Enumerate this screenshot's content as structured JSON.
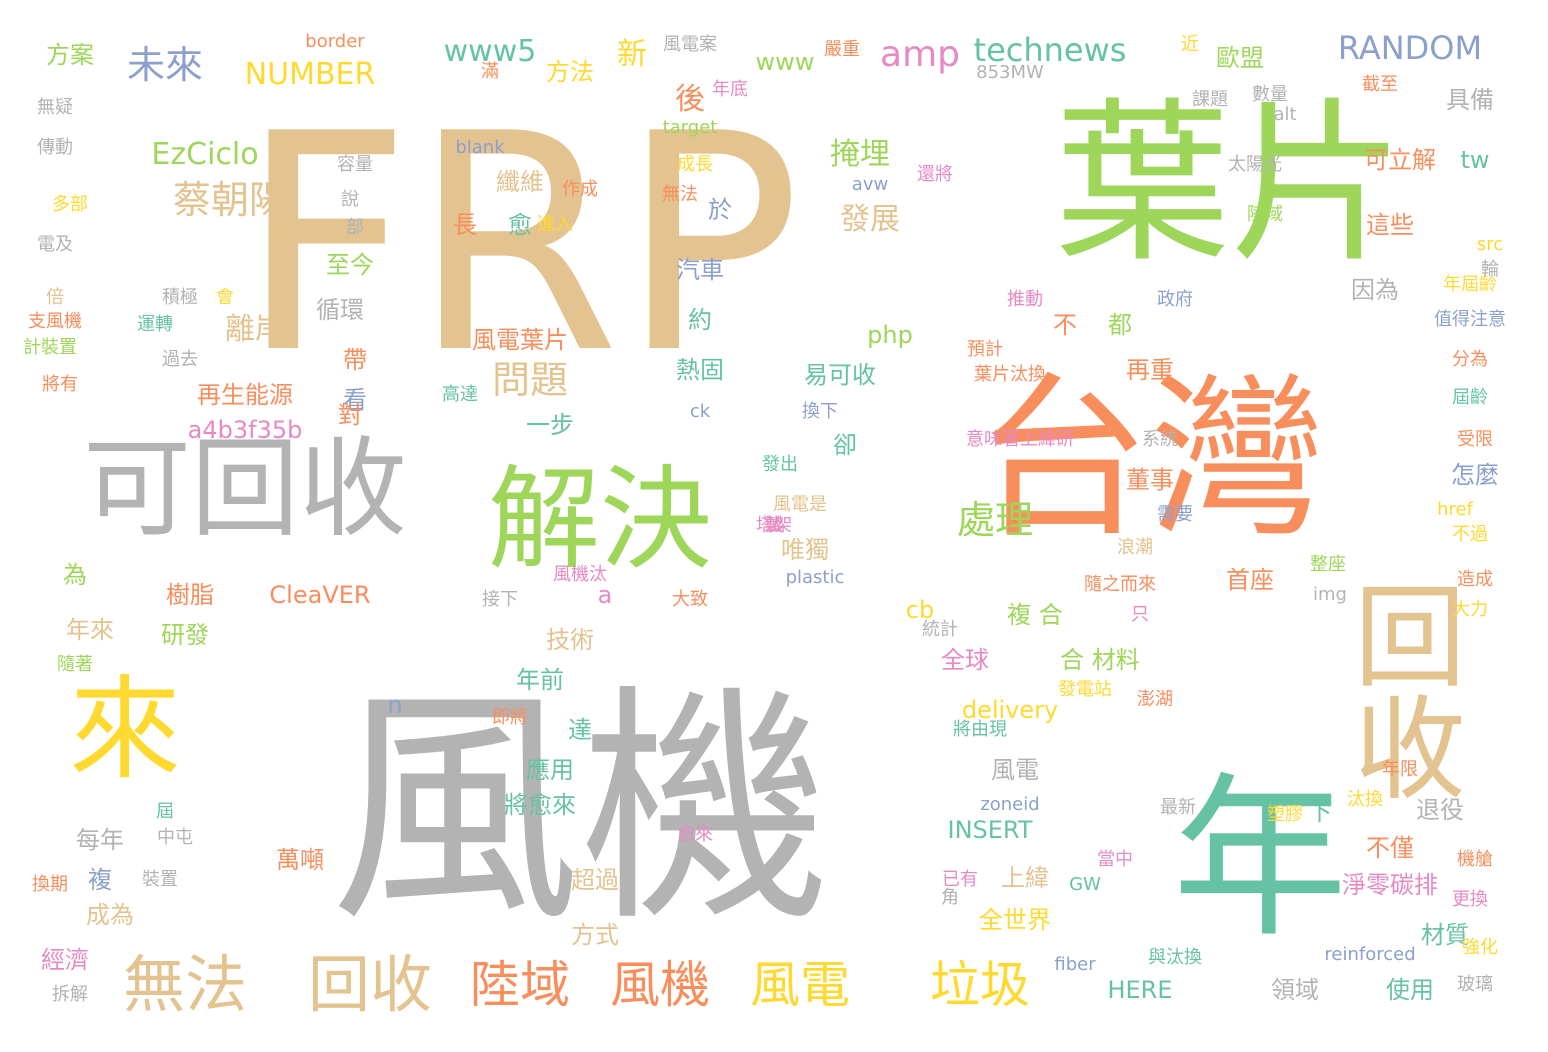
{
  "palette": {
    "tan": "#e3c38f",
    "green": "#9ed65a",
    "orange": "#f98e5d",
    "gray": "#b3b3b3",
    "teal": "#66c2a5",
    "yellow": "#ffd92f",
    "blue": "#8da0cb",
    "pink": "#e78ac3"
  },
  "words": [
    {
      "text": "FRP",
      "color": "tan",
      "rank": 1
    },
    {
      "text": "風機",
      "color": "gray",
      "rank": 1
    },
    {
      "text": "葉片",
      "color": "green",
      "rank": 2
    },
    {
      "text": "台灣",
      "color": "orange",
      "rank": 2
    },
    {
      "text": "年",
      "color": "teal",
      "rank": 2
    },
    {
      "text": "可回收",
      "color": "gray",
      "rank": 3
    },
    {
      "text": "解決",
      "color": "green",
      "rank": 3
    },
    {
      "text": "回收",
      "color": "tan",
      "rank": 3,
      "vertical": true
    },
    {
      "text": "來",
      "color": "yellow",
      "rank": 3
    },
    {
      "text": "無法",
      "color": "tan",
      "rank": 4
    },
    {
      "text": "回收",
      "color": "tan",
      "rank": 4
    },
    {
      "text": "陸域",
      "color": "orange",
      "rank": 4
    },
    {
      "text": "風機",
      "color": "orange",
      "rank": 4
    },
    {
      "text": "風電",
      "color": "yellow",
      "rank": 4
    },
    {
      "text": "垃圾",
      "color": "yellow",
      "rank": 4
    },
    {
      "text": "蔡朝陽",
      "color": "tan",
      "rank": 5
    },
    {
      "text": "處理",
      "color": "green",
      "rank": 5
    },
    {
      "text": "問題",
      "color": "tan",
      "rank": 5
    },
    {
      "text": "未來",
      "color": "blue",
      "rank": 5
    },
    {
      "text": "amp",
      "color": "pink",
      "rank": 5
    },
    {
      "text": "technews",
      "color": "teal",
      "rank": 5
    },
    {
      "text": "RANDOM",
      "color": "blue",
      "rank": 5
    },
    {
      "text": "NUMBER",
      "color": "yellow",
      "rank": 5
    },
    {
      "text": "www5",
      "color": "teal",
      "rank": 5
    },
    {
      "text": "EzCiclo",
      "color": "green",
      "rank": 5
    },
    {
      "text": "掩埋",
      "color": "green",
      "rank": 5
    },
    {
      "text": "發展",
      "color": "tan",
      "rank": 5
    },
    {
      "text": "離岸",
      "color": "tan",
      "rank": 5
    },
    {
      "text": "後",
      "color": "orange",
      "rank": 5
    },
    {
      "text": "新",
      "color": "yellow",
      "rank": 5
    },
    {
      "text": "方法",
      "color": "yellow",
      "rank": 6
    },
    {
      "text": "方案",
      "color": "green",
      "rank": 6
    },
    {
      "text": "www",
      "color": "green",
      "rank": 6
    },
    {
      "text": "歐盟",
      "color": "green",
      "rank": 6
    },
    {
      "text": "具備",
      "color": "gray",
      "rank": 6
    },
    {
      "text": "可立解",
      "color": "orange",
      "rank": 6
    },
    {
      "text": "這些",
      "color": "orange",
      "rank": 6
    },
    {
      "text": "tw",
      "color": "teal",
      "rank": 6
    },
    {
      "text": "纖維",
      "color": "tan",
      "rank": 6
    },
    {
      "text": "愈",
      "color": "teal",
      "rank": 6
    },
    {
      "text": "長",
      "color": "orange",
      "rank": 6
    },
    {
      "text": "於",
      "color": "blue",
      "rank": 6
    },
    {
      "text": "汽車",
      "color": "blue",
      "rank": 6
    },
    {
      "text": "至今",
      "color": "green",
      "rank": 6
    },
    {
      "text": "循環",
      "color": "gray",
      "rank": 6
    },
    {
      "text": "不",
      "color": "orange",
      "rank": 6
    },
    {
      "text": "都",
      "color": "green",
      "rank": 6
    },
    {
      "text": "因為",
      "color": "gray",
      "rank": 6
    },
    {
      "text": "php",
      "color": "green",
      "rank": 6
    },
    {
      "text": "約",
      "color": "teal",
      "rank": 6
    },
    {
      "text": "熱固",
      "color": "teal",
      "rank": 6
    },
    {
      "text": "易可收",
      "color": "teal",
      "rank": 6
    },
    {
      "text": "再重",
      "color": "orange",
      "rank": 6
    },
    {
      "text": "再生能源",
      "color": "orange",
      "rank": 6
    },
    {
      "text": "帶",
      "color": "orange",
      "rank": 6
    },
    {
      "text": "看",
      "color": "blue",
      "rank": 6
    },
    {
      "text": "a4b3f35b",
      "color": "pink",
      "rank": 6
    },
    {
      "text": "一步",
      "color": "teal",
      "rank": 6
    },
    {
      "text": "卻",
      "color": "teal",
      "rank": 6
    },
    {
      "text": "董事",
      "color": "orange",
      "rank": 6
    },
    {
      "text": "怎麼",
      "color": "blue",
      "rank": 6
    },
    {
      "text": "唯獨",
      "color": "tan",
      "rank": 6
    },
    {
      "text": "首座",
      "color": "orange",
      "rank": 6
    },
    {
      "text": "樹脂",
      "color": "orange",
      "rank": 6
    },
    {
      "text": "為",
      "color": "green",
      "rank": 6
    },
    {
      "text": "CleaVER",
      "color": "orange",
      "rank": 6
    },
    {
      "text": "a",
      "color": "pink",
      "rank": 6
    },
    {
      "text": "cb",
      "color": "yellow",
      "rank": 6
    },
    {
      "text": "複 合",
      "color": "green",
      "rank": 6
    },
    {
      "text": "技術",
      "color": "tan",
      "rank": 6
    },
    {
      "text": "研發",
      "color": "green",
      "rank": 6
    },
    {
      "text": "年來",
      "color": "tan",
      "rank": 6
    },
    {
      "text": "全球",
      "color": "pink",
      "rank": 6
    },
    {
      "text": "合 材料",
      "color": "green",
      "rank": 6
    },
    {
      "text": "年前",
      "color": "teal",
      "rank": 6
    },
    {
      "text": "delivery",
      "color": "yellow",
      "rank": 6
    },
    {
      "text": "達",
      "color": "teal",
      "rank": 6
    },
    {
      "text": "應用",
      "color": "teal",
      "rank": 6
    },
    {
      "text": "風電",
      "color": "gray",
      "rank": 6
    },
    {
      "text": "退役",
      "color": "gray",
      "rank": 6
    },
    {
      "text": "每年",
      "color": "gray",
      "rank": 6
    },
    {
      "text": "將愈來",
      "color": "teal",
      "rank": 6
    },
    {
      "text": "INSERT",
      "color": "teal",
      "rank": 6
    },
    {
      "text": "上緯",
      "color": "tan",
      "rank": 6
    },
    {
      "text": "下",
      "color": "teal",
      "rank": 6
    },
    {
      "text": "不僅",
      "color": "orange",
      "rank": 6
    },
    {
      "text": "複",
      "color": "blue",
      "rank": 6
    },
    {
      "text": "萬噸",
      "color": "orange",
      "rank": 6
    },
    {
      "text": "淨零碳排",
      "color": "pink",
      "rank": 6
    },
    {
      "text": "成為",
      "color": "tan",
      "rank": 6
    },
    {
      "text": "超過",
      "color": "tan",
      "rank": 6
    },
    {
      "text": "全世界",
      "color": "yellow",
      "rank": 6
    },
    {
      "text": "材質",
      "color": "teal",
      "rank": 6
    },
    {
      "text": "方式",
      "color": "tan",
      "rank": 6
    },
    {
      "text": "經濟",
      "color": "pink",
      "rank": 6
    },
    {
      "text": "HERE",
      "color": "teal",
      "rank": 6
    },
    {
      "text": "使用",
      "color": "teal",
      "rank": 6
    },
    {
      "text": "領域",
      "color": "gray",
      "rank": 6
    },
    {
      "text": "風電葉片",
      "color": "orange",
      "rank": 6
    },
    {
      "text": "對",
      "color": "orange",
      "rank": 6
    },
    {
      "text": "n",
      "color": "blue",
      "rank": 6
    },
    {
      "text": "border",
      "color": "orange",
      "rank": 7
    },
    {
      "text": "風電案",
      "color": "gray",
      "rank": 7
    },
    {
      "text": "853MW",
      "color": "gray",
      "rank": 7
    },
    {
      "text": "target",
      "color": "green",
      "rank": 7
    },
    {
      "text": "blank",
      "color": "blue",
      "rank": 7
    },
    {
      "text": "容量",
      "color": "gray",
      "rank": 7
    },
    {
      "text": "成長",
      "color": "yellow",
      "rank": 7
    },
    {
      "text": "avw",
      "color": "blue",
      "rank": 7
    },
    {
      "text": "alt",
      "color": "gray",
      "rank": 7
    },
    {
      "text": "太陽光",
      "color": "gray",
      "rank": 7
    },
    {
      "text": "ck",
      "color": "blue",
      "rank": 7
    },
    {
      "text": "發出",
      "color": "teal",
      "rank": 7
    },
    {
      "text": "風電是",
      "color": "tan",
      "rank": 7
    },
    {
      "text": "plastic",
      "color": "blue",
      "rank": 7
    },
    {
      "text": "img",
      "color": "gray",
      "rank": 7
    },
    {
      "text": "zoneid",
      "color": "blue",
      "rank": 7
    },
    {
      "text": "最新",
      "color": "gray",
      "rank": 7
    },
    {
      "text": "reinforced",
      "color": "blue",
      "rank": 7
    },
    {
      "text": "fiber",
      "color": "blue",
      "rank": 7
    },
    {
      "text": "與汰換",
      "color": "teal",
      "rank": 7
    },
    {
      "text": "GW",
      "color": "teal",
      "rank": 7
    },
    {
      "text": "href",
      "color": "yellow",
      "rank": 7
    },
    {
      "text": "src",
      "color": "yellow",
      "rank": 7
    },
    {
      "text": "將由現",
      "color": "teal",
      "rank": 7
    },
    {
      "text": "浪潮",
      "color": "tan",
      "rank": 7
    },
    {
      "text": "意味著上緯研",
      "color": "pink",
      "rank": 7
    },
    {
      "text": "系統",
      "color": "gray",
      "rank": 7
    },
    {
      "text": "無疑",
      "color": "gray",
      "rank": 7
    },
    {
      "text": "傳動",
      "color": "gray",
      "rank": 7
    },
    {
      "text": "電及",
      "color": "gray",
      "rank": 7
    },
    {
      "text": "積極",
      "color": "gray",
      "rank": 7
    },
    {
      "text": "過去",
      "color": "gray",
      "rank": 7
    },
    {
      "text": "年屆齡",
      "color": "yellow",
      "rank": 7
    },
    {
      "text": "數量",
      "color": "gray",
      "rank": 7
    },
    {
      "text": "課題",
      "color": "gray",
      "rank": 7
    },
    {
      "text": "截至",
      "color": "orange",
      "rank": 7
    },
    {
      "text": "推動",
      "color": "pink",
      "rank": 7
    },
    {
      "text": "政府",
      "color": "blue",
      "rank": 7
    },
    {
      "text": "換下",
      "color": "blue",
      "rank": 7
    },
    {
      "text": "值得注意",
      "color": "blue",
      "rank": 7
    },
    {
      "text": "屆齡",
      "color": "teal",
      "rank": 7
    },
    {
      "text": "受限",
      "color": "orange",
      "rank": 7
    },
    {
      "text": "不過",
      "color": "yellow",
      "rank": 7
    },
    {
      "text": "造成",
      "color": "orange",
      "rank": 7
    },
    {
      "text": "大力",
      "color": "yellow",
      "rank": 7
    },
    {
      "text": "強化",
      "color": "yellow",
      "rank": 7
    },
    {
      "text": "玻璃",
      "color": "gray",
      "rank": 7
    },
    {
      "text": "更換",
      "color": "pink",
      "rank": 7
    },
    {
      "text": "機艙",
      "color": "orange",
      "rank": 7
    },
    {
      "text": "汰換",
      "color": "yellow",
      "rank": 7
    },
    {
      "text": "塑膠",
      "color": "yellow",
      "rank": 7
    },
    {
      "text": "年限",
      "color": "orange",
      "rank": 7
    },
    {
      "text": "澎湖",
      "color": "orange",
      "rank": 7
    },
    {
      "text": "隨之而來",
      "color": "orange",
      "rank": 7
    },
    {
      "text": "整座",
      "color": "green",
      "rank": 7
    },
    {
      "text": "需要",
      "color": "blue",
      "rank": 7
    },
    {
      "text": "發電站",
      "color": "yellow",
      "rank": 7
    },
    {
      "text": "即將",
      "color": "orange",
      "rank": 7
    },
    {
      "text": "愈來",
      "color": "pink",
      "rank": 7
    },
    {
      "text": "當中",
      "color": "pink",
      "rank": 7
    },
    {
      "text": "已有",
      "color": "pink",
      "rank": 7
    },
    {
      "text": "分為",
      "color": "orange",
      "rank": 7
    },
    {
      "text": "大致",
      "color": "orange",
      "rank": 7
    },
    {
      "text": "接下",
      "color": "gray",
      "rank": 7
    },
    {
      "text": "風機汰",
      "color": "pink",
      "rank": 7
    },
    {
      "text": "統計",
      "color": "gray",
      "rank": 7
    },
    {
      "text": "只",
      "color": "pink",
      "rank": 7
    },
    {
      "text": "屆",
      "color": "teal",
      "rank": 7
    },
    {
      "text": "中屯",
      "color": "gray",
      "rank": 7
    },
    {
      "text": "裝置",
      "color": "gray",
      "rank": 7
    },
    {
      "text": "換期",
      "color": "orange",
      "rank": 7
    },
    {
      "text": "拆解",
      "color": "gray",
      "rank": 7
    },
    {
      "text": "隨著",
      "color": "green",
      "rank": 7
    },
    {
      "text": "倍",
      "color": "tan",
      "rank": 7
    },
    {
      "text": "支風機",
      "color": "orange",
      "rank": 7
    },
    {
      "text": "計裝置",
      "color": "green",
      "rank": 7
    },
    {
      "text": "將有",
      "color": "orange",
      "rank": 7
    },
    {
      "text": "多部",
      "color": "yellow",
      "rank": 7
    },
    {
      "text": "滿",
      "color": "orange",
      "rank": 7
    },
    {
      "text": "嚴重",
      "color": "orange",
      "rank": 7
    },
    {
      "text": "近",
      "color": "yellow",
      "rank": 7
    },
    {
      "text": "年底",
      "color": "pink",
      "rank": 7
    },
    {
      "text": "說",
      "color": "gray",
      "rank": 7
    },
    {
      "text": "部",
      "color": "gray",
      "rank": 7
    },
    {
      "text": "會",
      "color": "yellow",
      "rank": 7
    },
    {
      "text": "運轉",
      "color": "teal",
      "rank": 7
    },
    {
      "text": "高達",
      "color": "teal",
      "rank": 7
    },
    {
      "text": "葉片汰換",
      "color": "orange",
      "rank": 7
    },
    {
      "text": "預計",
      "color": "orange",
      "rank": 7
    },
    {
      "text": "作成",
      "color": "orange",
      "rank": 7
    },
    {
      "text": "進入",
      "color": "yellow",
      "rank": 7
    },
    {
      "text": "無法",
      "color": "orange",
      "rank": 7
    },
    {
      "text": "還將",
      "color": "pink",
      "rank": 7
    },
    {
      "text": "陸域",
      "color": "green",
      "rank": 7
    },
    {
      "text": "輪",
      "color": "gray",
      "rank": 7
    },
    {
      "text": "角",
      "color": "gray",
      "rank": 7
    },
    {
      "text": "汰",
      "color": "pink",
      "rank": 7
    },
    {
      "text": "塔架",
      "color": "pink",
      "rank": 7
    },
    {
      "text": "製",
      "color": "pink",
      "rank": 7
    }
  ]
}
